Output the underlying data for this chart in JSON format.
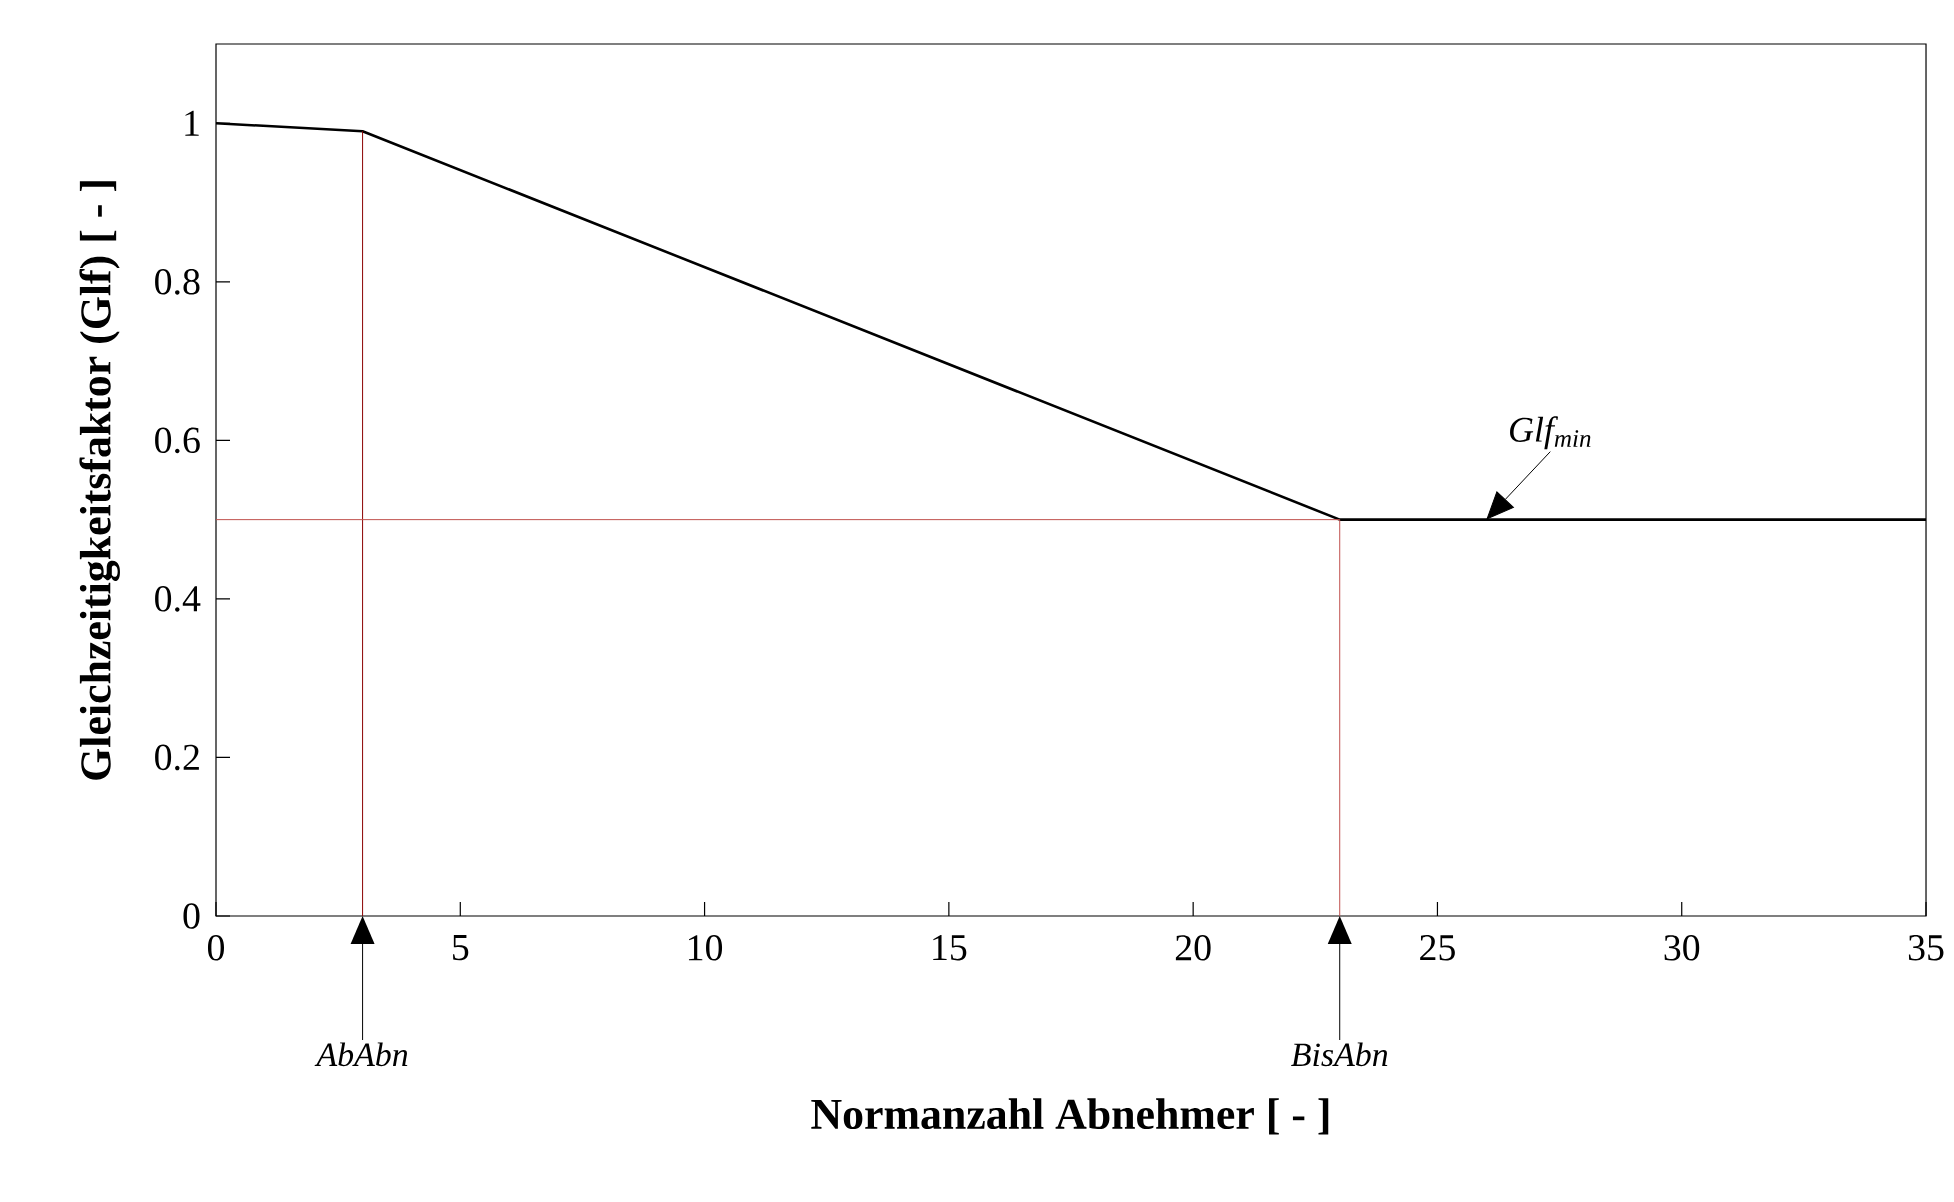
{
  "chart_data": {
    "type": "line",
    "xlabel": "Normanzahl Abnehmer [ - ]",
    "ylabel": "Gleichzeitigkeitsfaktor (Glf) [ - ]",
    "series": [
      {
        "x": [
          0,
          3,
          23,
          35
        ],
        "values": [
          1.0,
          0.99,
          0.5,
          0.5
        ],
        "color": "#000000"
      },
      {
        "x": [
          3,
          3
        ],
        "values": [
          0,
          0.99
        ],
        "color": "#8b0000"
      },
      {
        "x": [
          0,
          23,
          23
        ],
        "values": [
          0.5,
          0.5,
          0
        ],
        "color": "#c0504d"
      }
    ],
    "xlim": [
      0,
      35
    ],
    "xticks": [
      0,
      5,
      10,
      15,
      20,
      25,
      30,
      35
    ],
    "ylim": [
      0,
      1.1
    ],
    "yticks": [
      0,
      0.2,
      0.4,
      0.6,
      0.8,
      1
    ],
    "annotations": [
      "AbAbn",
      "BisAbn",
      {
        "text": "Glf$_{min}$",
        "x": 26,
        "y": 0.5
      }
    ],
    "grid": false
  }
}
